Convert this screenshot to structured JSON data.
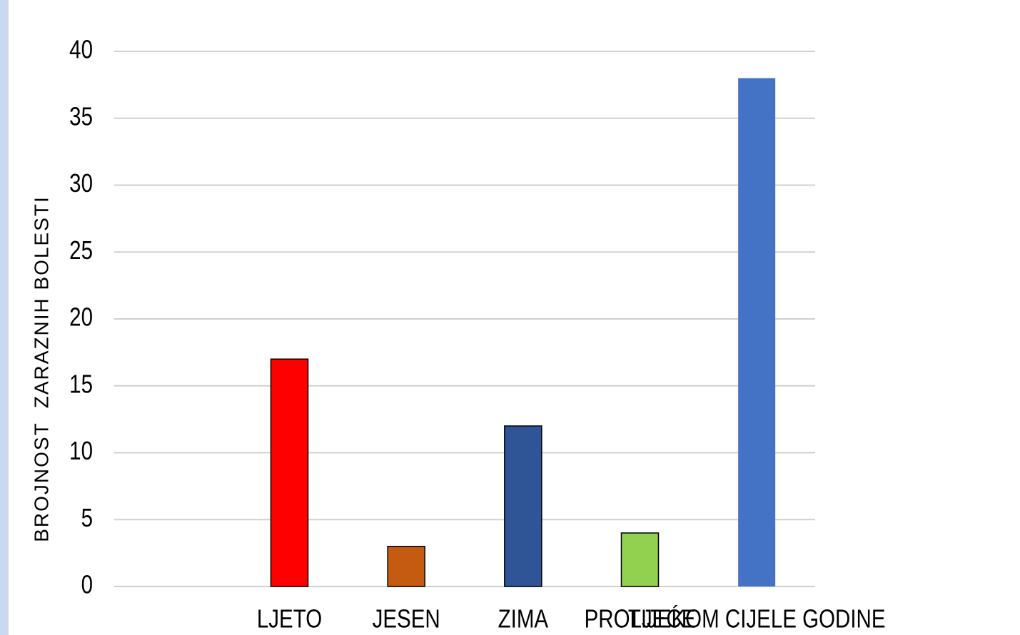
{
  "chart_data": {
    "type": "bar",
    "y_axis_label": "BROJNOST  ZARAZNIH BOLESTI",
    "categories": [
      null,
      "LJETO",
      "JESEN",
      "ZIMA",
      "PROLJEĆE",
      "TIJEKOM CIJELE GODINE"
    ],
    "values": [
      null,
      17,
      3,
      12,
      4,
      38
    ],
    "colors": [
      null,
      "#ff0000",
      "#c55a11",
      "#2f5597",
      "#92d050",
      "#4472c4"
    ],
    "ylim": [
      0,
      40
    ],
    "yticks": [
      0,
      5,
      10,
      15,
      20,
      25,
      30,
      35,
      40
    ],
    "grid": true
  }
}
